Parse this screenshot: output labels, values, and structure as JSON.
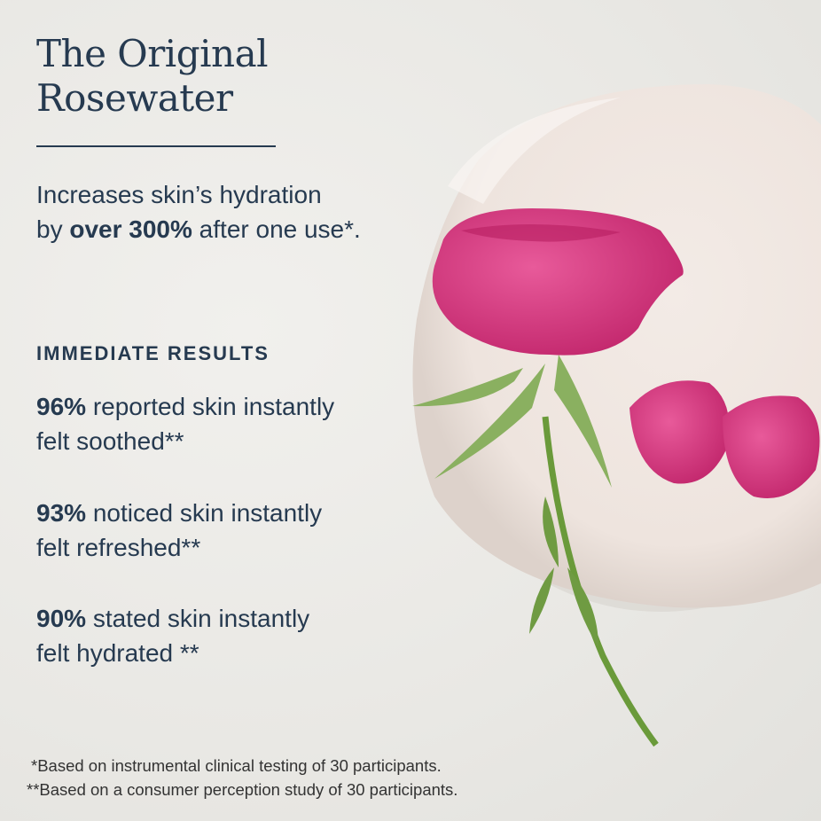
{
  "title": {
    "line1": "The Original",
    "line2": "Rosewater"
  },
  "intro": {
    "line1": "Increases skin’s hydration",
    "prefix": "by ",
    "highlight": "over 300%",
    "suffix": " after one use*."
  },
  "section_heading": "IMMEDIATE RESULTS",
  "stats": [
    {
      "percent": "96%",
      "text": " reported skin instantly",
      "line2": "felt soothed**"
    },
    {
      "percent": "93%",
      "text": " noticed skin instantly",
      "line2": "felt refreshed**"
    },
    {
      "percent": "90%",
      "text": " stated skin instantly",
      "line2": "felt hydrated **"
    }
  ],
  "footnotes": [
    "*Based on instrumental clinical testing of 30 participants.",
    "**Based on a consumer perception study of 30 participants."
  ],
  "colors": {
    "text": "#263a50",
    "rose": "#d2307a",
    "stem": "#6a9a3a",
    "background": "#ebeae6"
  }
}
